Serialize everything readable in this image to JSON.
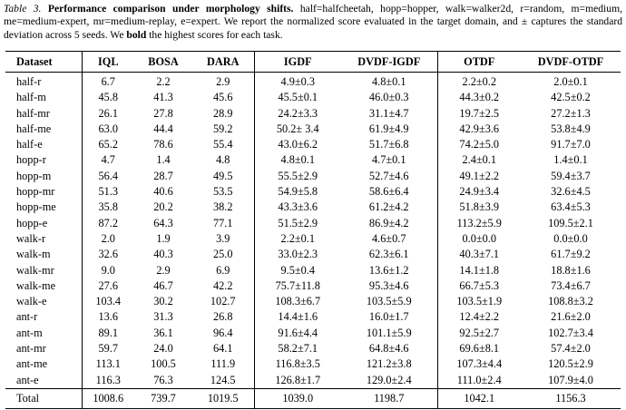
{
  "caption": {
    "label": "Table 3.",
    "title": "Performance comparison under morphology shifts.",
    "text": " half=halfcheetah, hopp=hopper, walk=walker2d, r=random, m=medium, me=medium-expert, mr=medium-replay, e=expert. We report the normalized score evaluated in the target domain, and ± captures the standard deviation across 5 seeds. We ",
    "bold_word": "bold",
    "text_end": " the highest scores for each task."
  },
  "table": {
    "columns": [
      "Dataset",
      "IQL",
      "BOSA",
      "DARA",
      "IGDF",
      "DVDF-IGDF",
      "OTDF",
      "DVDF-OTDF"
    ],
    "rows": [
      {
        "dataset": "half-r",
        "cells": [
          "6.7",
          "2.2",
          "2.9",
          "4.9±0.3",
          "4.8±0.1",
          "2.2±0.2",
          "2.0±0.1"
        ],
        "bold": [
          0,
          3,
          5
        ]
      },
      {
        "dataset": "half-m",
        "cells": [
          "45.8",
          "41.3",
          "45.6",
          "45.5±0.1",
          "46.0±0.3",
          "44.3±0.2",
          "42.5±0.2"
        ],
        "bold": [
          4,
          5
        ]
      },
      {
        "dataset": "half-mr",
        "cells": [
          "26.1",
          "27.8",
          "28.9",
          "24.2±3.3",
          "31.1±4.7",
          "19.7±2.5",
          "27.2±1.3"
        ],
        "bold": [
          4,
          6
        ]
      },
      {
        "dataset": "half-me",
        "cells": [
          "63.0",
          "44.4",
          "59.2",
          "50.2± 3.4",
          "61.9±4.9",
          "42.9±3.6",
          "53.8±4.9"
        ],
        "bold": [
          4,
          6
        ]
      },
      {
        "dataset": "half-e",
        "cells": [
          "65.2",
          "78.6",
          "55.4",
          "43.0±6.2",
          "51.7±6.8",
          "74.2±5.0",
          "91.7±7.0"
        ],
        "bold": [
          4,
          6
        ]
      },
      {
        "dataset": "hopp-r",
        "cells": [
          "4.7",
          "1.4",
          "4.8",
          "4.8±0.1",
          "4.7±0.1",
          "2.4±0.1",
          "1.4±0.1"
        ],
        "bold": [
          5
        ]
      },
      {
        "dataset": "hopp-m",
        "cells": [
          "56.4",
          "28.7",
          "49.5",
          "55.5±2.9",
          "52.7±4.6",
          "49.1±2.2",
          "59.4±3.7"
        ],
        "bold": [
          3,
          6
        ]
      },
      {
        "dataset": "hopp-mr",
        "cells": [
          "51.3",
          "40.6",
          "53.5",
          "54.9±5.8",
          "58.6±6.4",
          "24.9±3.4",
          "32.6±4.5"
        ],
        "bold": [
          4,
          6
        ]
      },
      {
        "dataset": "hopp-me",
        "cells": [
          "35.8",
          "20.2",
          "38.2",
          "43.3±3.6",
          "61.2±4.2",
          "51.8±3.9",
          "63.4±5.3"
        ],
        "bold": [
          4,
          6
        ]
      },
      {
        "dataset": "hopp-e",
        "cells": [
          "87.2",
          "64.3",
          "77.1",
          "51.5±2.9",
          "86.9±4.2",
          "113.2±5.9",
          "109.5±2.1"
        ],
        "bold": [
          4,
          5
        ]
      },
      {
        "dataset": "walk-r",
        "cells": [
          "2.0",
          "1.9",
          "3.9",
          "2.2±0.1",
          "4.6±0.7",
          "0.0±0.0",
          "0.0±0.0"
        ],
        "bold": [
          4
        ]
      },
      {
        "dataset": "walk-m",
        "cells": [
          "32.6",
          "40.3",
          "25.0",
          "33.0±2.3",
          "62.3±6.1",
          "40.3±7.1",
          "61.7±9.2"
        ],
        "bold": [
          4,
          6
        ]
      },
      {
        "dataset": "walk-mr",
        "cells": [
          "9.0",
          "2.9",
          "6.9",
          "9.5±0.4",
          "13.6±1.2",
          "14.1±1.8",
          "18.8±1.6"
        ],
        "bold": [
          4,
          6
        ]
      },
      {
        "dataset": "walk-me",
        "cells": [
          "27.6",
          "46.7",
          "42.2",
          "75.7±11.8",
          "95.3±4.6",
          "66.7±5.3",
          "73.4±6.7"
        ],
        "bold": [
          4,
          6
        ]
      },
      {
        "dataset": "walk-e",
        "cells": [
          "103.4",
          "30.2",
          "102.7",
          "108.3±6.7",
          "103.5±5.9",
          "103.5±1.9",
          "108.8±3.2"
        ],
        "bold": [
          3,
          6
        ]
      },
      {
        "dataset": "ant-r",
        "cells": [
          "13.6",
          "31.3",
          "26.8",
          "14.4±1.6",
          "16.0±1.7",
          "12.4±2.2",
          "21.6±2.0"
        ],
        "bold": [
          1,
          4,
          6
        ]
      },
      {
        "dataset": "ant-m",
        "cells": [
          "89.1",
          "36.1",
          "96.4",
          "91.6±4.4",
          "101.1±5.9",
          "92.5±2.7",
          "102.7±3.4"
        ],
        "bold": [
          4,
          6
        ]
      },
      {
        "dataset": "ant-mr",
        "cells": [
          "59.7",
          "24.0",
          "64.1",
          "58.2±7.1",
          "64.8±4.6",
          "69.6±8.1",
          "57.4±2.0"
        ],
        "bold": [
          4,
          5
        ]
      },
      {
        "dataset": "ant-me",
        "cells": [
          "113.1",
          "100.5",
          "111.9",
          "116.8±3.5",
          "121.2±3.8",
          "107.3±4.4",
          "120.5±2.9"
        ],
        "bold": [
          4,
          6
        ]
      },
      {
        "dataset": "ant-e",
        "cells": [
          "116.3",
          "76.3",
          "124.5",
          "126.8±1.7",
          "129.0±2.4",
          "111.0±2.4",
          "107.9±4.0"
        ],
        "bold": [
          4,
          5
        ]
      }
    ],
    "total": {
      "dataset": "Total",
      "cells": [
        "1008.6",
        "739.7",
        "1019.5",
        "1039.0",
        "1198.7",
        "1042.1",
        "1156.3"
      ],
      "bold": [
        4,
        6
      ]
    }
  }
}
